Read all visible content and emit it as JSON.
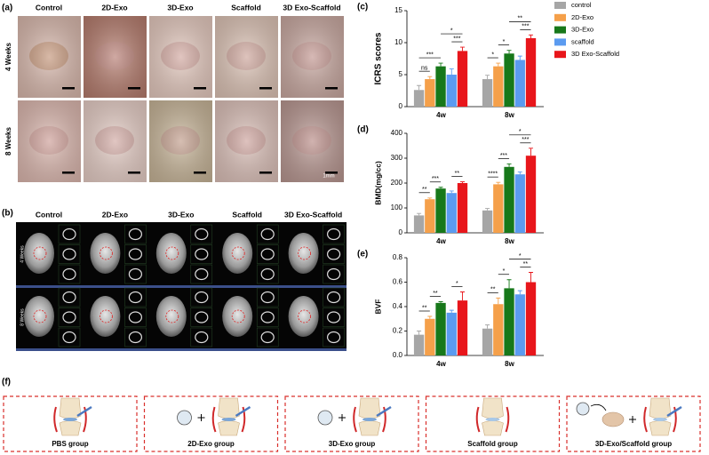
{
  "panels": {
    "a": {
      "label": "(a)",
      "columns": [
        "Control",
        "2D-Exo",
        "3D-Exo",
        "Scaffold",
        "3D Exo-Scaffold"
      ],
      "rows": [
        "4 Weeks",
        "8 Weeks"
      ],
      "scale_bar": "1mm"
    },
    "b": {
      "label": "(b)",
      "columns": [
        "Control",
        "2D-Exo",
        "3D-Exo",
        "Scaffold",
        "3D Exo-Scaffold"
      ],
      "rows": [
        "4 Weeks",
        "8 Weeks"
      ]
    },
    "f": {
      "label": "(f)",
      "groups": [
        "PBS group",
        "2D-Exo group",
        "3D-Exo group",
        "Scaffold group",
        "3D-Exo/Scaffold group"
      ]
    }
  },
  "chart_data": [
    {
      "type": "bar",
      "label": "(c)",
      "y_label": "ICRS scores",
      "categories": [
        "4w",
        "8w"
      ],
      "series": [
        {
          "name": "control",
          "color": "#a6a6a6",
          "values": [
            2.6,
            4.3
          ],
          "errors": [
            0.7,
            0.6
          ]
        },
        {
          "name": "2D-Exo",
          "color": "#f5a04a",
          "values": [
            4.3,
            6.3
          ],
          "errors": [
            0.4,
            0.5
          ]
        },
        {
          "name": "3D-Exo",
          "color": "#17781a",
          "values": [
            6.3,
            8.3
          ],
          "errors": [
            0.5,
            0.5
          ]
        },
        {
          "name": "scaffold",
          "color": "#5b9bf0",
          "values": [
            5.0,
            7.3
          ],
          "errors": [
            0.9,
            0.6
          ]
        },
        {
          "name": "3D Exo-Scaffold",
          "color": "#e8161b",
          "values": [
            8.7,
            10.7
          ],
          "errors": [
            0.6,
            0.5
          ]
        }
      ],
      "annotations": [
        {
          "text": "ns",
          "category": 0,
          "from": 0,
          "to": 1
        },
        {
          "text": "***",
          "category": 0,
          "from": 0,
          "to": 2
        },
        {
          "text": "***",
          "category": 0,
          "from": 3,
          "to": 4
        },
        {
          "text": "*",
          "category": 0,
          "from": 2,
          "to": 4
        },
        {
          "text": "*",
          "category": 1,
          "from": 0,
          "to": 1
        },
        {
          "text": "*",
          "category": 1,
          "from": 1,
          "to": 2
        },
        {
          "text": "***",
          "category": 1,
          "from": 3,
          "to": 4
        },
        {
          "text": "**",
          "category": 1,
          "from": 2,
          "to": 4
        }
      ],
      "ylim": [
        0,
        15
      ],
      "yticks": [
        0,
        5,
        10,
        15
      ],
      "legend": "right"
    },
    {
      "type": "bar",
      "label": "(d)",
      "y_label": "BMD(mg/cc)",
      "categories": [
        "4w",
        "8w"
      ],
      "series": [
        {
          "color": "#a6a6a6",
          "values": [
            70,
            90
          ],
          "errors": [
            8,
            8
          ]
        },
        {
          "color": "#f5a04a",
          "values": [
            135,
            195
          ],
          "errors": [
            5,
            8
          ]
        },
        {
          "color": "#17781a",
          "values": [
            178,
            265
          ],
          "errors": [
            5,
            12
          ]
        },
        {
          "color": "#5b9bf0",
          "values": [
            160,
            235
          ],
          "errors": [
            8,
            10
          ]
        },
        {
          "color": "#e8161b",
          "values": [
            200,
            310
          ],
          "errors": [
            5,
            30
          ]
        }
      ],
      "annotations": [
        {
          "text": "**",
          "category": 0,
          "from": 0,
          "to": 1
        },
        {
          "text": "***",
          "category": 0,
          "from": 1,
          "to": 2
        },
        {
          "text": "**",
          "category": 0,
          "from": 3,
          "to": 4
        },
        {
          "text": "****",
          "category": 1,
          "from": 0,
          "to": 1
        },
        {
          "text": "***",
          "category": 1,
          "from": 1,
          "to": 2
        },
        {
          "text": "***",
          "category": 1,
          "from": 3,
          "to": 4
        },
        {
          "text": "*",
          "category": 1,
          "from": 2,
          "to": 4
        }
      ],
      "ylim": [
        0,
        400
      ],
      "yticks": [
        0,
        100,
        200,
        300,
        400
      ]
    },
    {
      "type": "bar",
      "label": "(e)",
      "y_label": "BVF",
      "categories": [
        "4w",
        "8w"
      ],
      "series": [
        {
          "color": "#a6a6a6",
          "values": [
            0.17,
            0.22
          ],
          "errors": [
            0.03,
            0.03
          ]
        },
        {
          "color": "#f5a04a",
          "values": [
            0.3,
            0.42
          ],
          "errors": [
            0.02,
            0.05
          ]
        },
        {
          "color": "#17781a",
          "values": [
            0.43,
            0.55
          ],
          "errors": [
            0.01,
            0.07
          ]
        },
        {
          "color": "#5b9bf0",
          "values": [
            0.35,
            0.5
          ],
          "errors": [
            0.02,
            0.03
          ]
        },
        {
          "color": "#e8161b",
          "values": [
            0.45,
            0.6
          ],
          "errors": [
            0.07,
            0.08
          ]
        }
      ],
      "annotations": [
        {
          "text": "**",
          "category": 0,
          "from": 0,
          "to": 1
        },
        {
          "text": "**",
          "category": 0,
          "from": 1,
          "to": 2
        },
        {
          "text": "*",
          "category": 0,
          "from": 3,
          "to": 4
        },
        {
          "text": "**",
          "category": 1,
          "from": 0,
          "to": 1
        },
        {
          "text": "*",
          "category": 1,
          "from": 1,
          "to": 2
        },
        {
          "text": "**",
          "category": 1,
          "from": 3,
          "to": 4
        },
        {
          "text": "*",
          "category": 1,
          "from": 2,
          "to": 4
        }
      ],
      "ylim": [
        0,
        0.8
      ],
      "yticks": [
        {
          "value": 0,
          "label": "0.0"
        },
        0.2,
        0.4,
        0.6,
        0.8
      ]
    }
  ]
}
